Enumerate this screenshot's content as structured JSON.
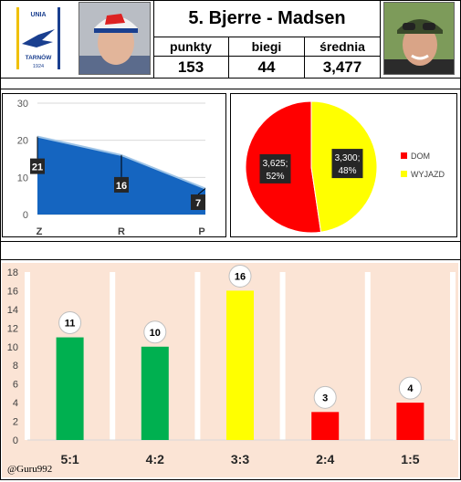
{
  "header": {
    "title": "5. Bjerre - Madsen",
    "stats": [
      {
        "label": "punkty",
        "value": "153"
      },
      {
        "label": "biegi",
        "value": "44"
      },
      {
        "label": "średnia",
        "value": "3,477"
      }
    ],
    "logo_text": {
      "top": "UNIA",
      "bottom": "TARNÓW",
      "year": "1924"
    }
  },
  "colors": {
    "area_fill": "#1565c0",
    "pie_home": "#ff0000",
    "pie_away": "#ffff00",
    "bar_green": "#00b050",
    "bar_yellow": "#ffff00",
    "bar_red": "#ff0000",
    "bar_bg": "#fbe4d5"
  },
  "chart_data": [
    {
      "type": "area",
      "categories": [
        "Z",
        "R",
        "P"
      ],
      "values": [
        21,
        16,
        7
      ],
      "ylim": [
        0,
        30
      ],
      "yticks": [
        0,
        10,
        20,
        30
      ],
      "data_labels": [
        "21",
        "16",
        "7"
      ]
    },
    {
      "type": "pie",
      "slices": [
        {
          "name": "DOM",
          "value": 3.625,
          "percent": 52,
          "label": "3,625;",
          "pct_label": "52%"
        },
        {
          "name": "WYJAZD",
          "value": 3.3,
          "percent": 48,
          "label": "3,300;",
          "pct_label": "48%"
        }
      ],
      "legend": "right"
    },
    {
      "type": "bar",
      "categories": [
        "5:1",
        "4:2",
        "3:3",
        "2:4",
        "1:5"
      ],
      "values": [
        11,
        10,
        16,
        3,
        4
      ],
      "data_labels": [
        "11",
        "10",
        "16",
        "3",
        "4"
      ],
      "ylim": [
        0,
        18
      ],
      "yticks": [
        0,
        2,
        4,
        6,
        8,
        10,
        12,
        14,
        16,
        18
      ],
      "bar_colors": [
        "#00b050",
        "#00b050",
        "#ffff00",
        "#ff0000",
        "#ff0000"
      ],
      "grid": true
    }
  ],
  "footer": {
    "watermark": "@Guru992"
  }
}
